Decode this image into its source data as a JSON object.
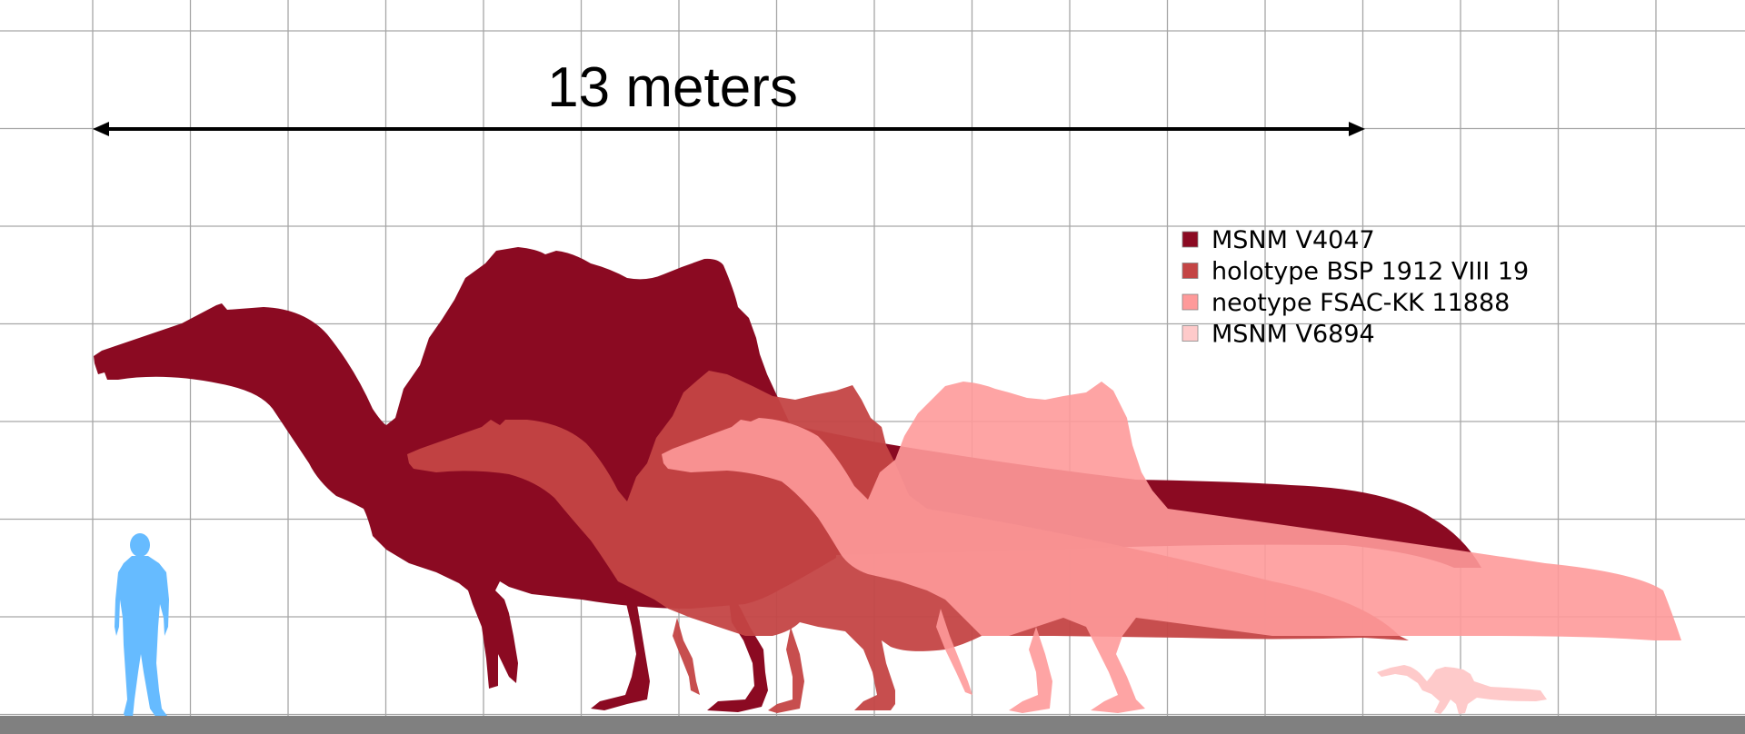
{
  "scale_bar": {
    "label": "13 meters"
  },
  "legend": [
    {
      "label": "MSNM V4047",
      "color": "#8b0a22"
    },
    {
      "label": "holotype BSP 1912 VIII 19",
      "color": "#c44545"
    },
    {
      "label": "neotype FSAC-KK 11888",
      "color": "#fe9a9a"
    },
    {
      "label": "MSNM V6894",
      "color": "#fecaca"
    }
  ],
  "colors": {
    "grid": "#a6a6a6",
    "ground": "#808080",
    "human": "#66bbff",
    "arrow": "#000000"
  }
}
